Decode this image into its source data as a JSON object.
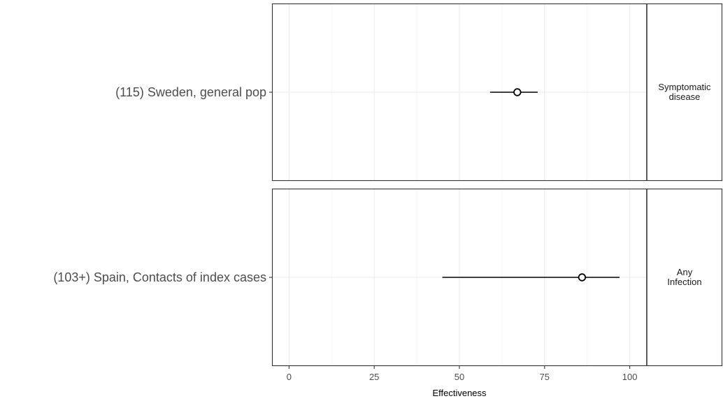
{
  "chart_data": {
    "type": "forest",
    "xlabel": "Effectiveness",
    "x_ticks": [
      0,
      25,
      50,
      75,
      100
    ],
    "xlim": [
      -5,
      105
    ],
    "grid": true,
    "panels": [
      {
        "facet_label": [
          "Symptomatic",
          "disease"
        ],
        "study": "(115) Sweden, general pop",
        "estimate": 67,
        "lower": 59,
        "upper": 73
      },
      {
        "facet_label": [
          "Any",
          "Infection"
        ],
        "study": "(103+) Spain, Contacts of index cases",
        "estimate": 86,
        "lower": 45,
        "upper": 97
      }
    ],
    "colors": {
      "grid_major": "#ebebeb",
      "grid_minor": "#f5f5f5",
      "panel_border": "#333333",
      "line": "#000000"
    }
  }
}
